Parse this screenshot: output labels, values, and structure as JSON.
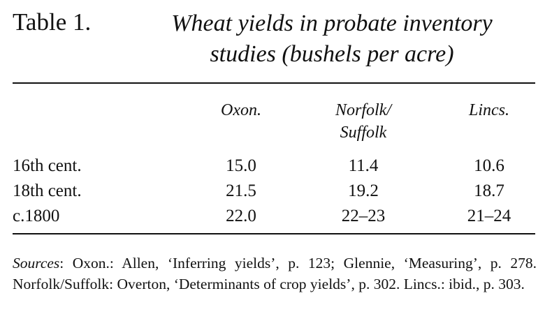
{
  "header": {
    "label": "Table 1.",
    "title": "Wheat yields in probate inventory\nstudies (bushels per acre)"
  },
  "table": {
    "columns": [
      "Oxon.",
      "Norfolk/\nSuffolk",
      "Lincs."
    ],
    "rows": [
      [
        "16th cent.",
        "15.0",
        "11.4",
        "10.6"
      ],
      [
        "18th cent.",
        "21.5",
        "19.2",
        "18.7"
      ],
      [
        "c.1800",
        "22.0",
        "22–23",
        "21–24"
      ]
    ]
  },
  "notes": {
    "label": "Sources",
    "text": ": Oxon.: Allen, ‘Inferring yields’, p. 123; Glennie, ‘Measuring’, p. 278. Norfolk/Suffolk: Overton, ‘Determinants of crop yields’, p. 302. Lincs.: ibid., p. 303."
  }
}
